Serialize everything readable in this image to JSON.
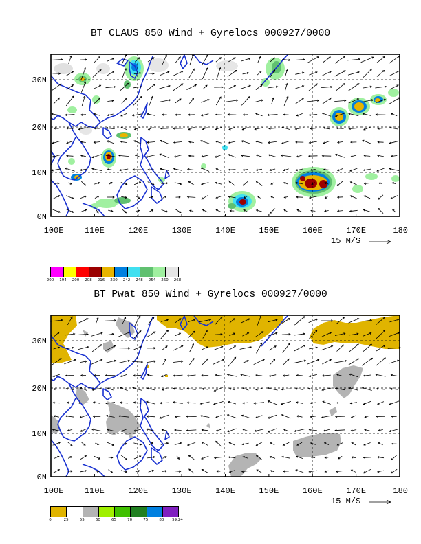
{
  "panels": [
    {
      "id": "claus",
      "title": "BT CLAUS 850 Wind + Gyrelocs 000927/0000",
      "x_tick_labels": [
        "100E",
        "110E",
        "120E",
        "130E",
        "140E",
        "150E",
        "160E",
        "170E",
        "180"
      ],
      "y_tick_labels": [
        "0N",
        "10N",
        "20N",
        "30N"
      ],
      "scale_label": "15 M/S",
      "legend": {
        "colors": [
          "#ff00ff",
          "#ffff00",
          "#ff0000",
          "#9b0000",
          "#e8b400",
          "#0080e0",
          "#40e0f0",
          "#60c070",
          "#a0f0a0",
          "#e6e6e6"
        ],
        "labels": [
          "200",
          "194",
          "200",
          "208",
          "216",
          "230",
          "242",
          "248",
          "254",
          "260",
          "268"
        ]
      }
    },
    {
      "id": "pwat",
      "title": "BT Pwat 850 Wind + Gyrelocs 000927/0000",
      "x_tick_labels": [
        "100E",
        "110E",
        "120E",
        "130E",
        "140E",
        "150E",
        "160E",
        "170E",
        "180"
      ],
      "y_tick_labels": [
        "0N",
        "10N",
        "20N",
        "30N"
      ],
      "scale_label": "15 M/S",
      "legend": {
        "colors": [
          "#e0b400",
          "#ffffff",
          "#b4b4b4",
          "#a0f000",
          "#40c000",
          "#208020",
          "#0080e0",
          "#8020c0"
        ],
        "labels": [
          "0",
          "25",
          "55",
          "60",
          "65",
          "70",
          "75",
          "80",
          "59.24"
        ]
      }
    }
  ],
  "colors": {
    "coast": "#1830d0",
    "vector": "#000000",
    "frame": "#000000"
  }
}
